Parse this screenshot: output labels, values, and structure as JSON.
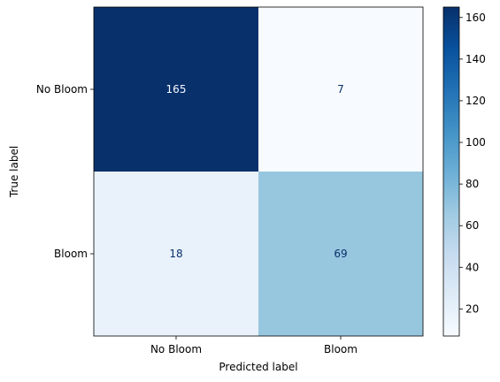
{
  "chart_data": {
    "type": "heatmap",
    "title": "",
    "xlabel": "Predicted label",
    "ylabel": "True label",
    "x_categories": [
      "No Bloom",
      "Bloom"
    ],
    "y_categories": [
      "No Bloom",
      "Bloom"
    ],
    "values": [
      [
        165,
        7
      ],
      [
        18,
        69
      ]
    ],
    "colormap": "Blues",
    "colorbar": {
      "vmin": 7,
      "vmax": 165,
      "ticks": [
        20,
        40,
        60,
        80,
        100,
        120,
        140,
        160
      ]
    },
    "grid": false
  }
}
